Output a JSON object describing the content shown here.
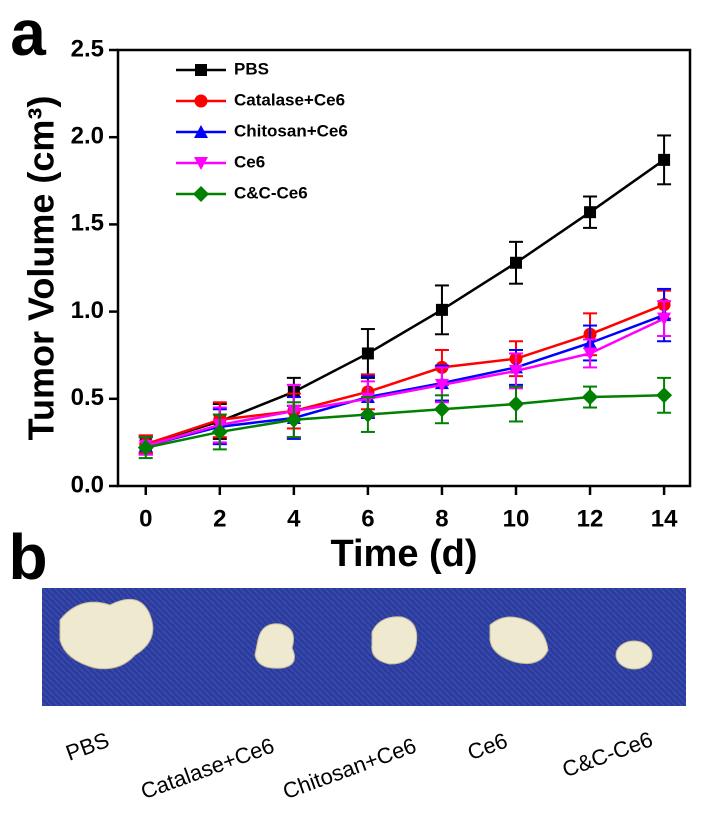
{
  "panel_labels": [
    "a",
    "b"
  ],
  "chart_data": {
    "type": "line",
    "xlabel": "Time (d)",
    "ylabel": "Tumor Volume (cm³)",
    "x": [
      0,
      2,
      4,
      6,
      8,
      10,
      12,
      14
    ],
    "xlim": [
      -0.75,
      14.7
    ],
    "xticks": [
      0,
      2,
      4,
      6,
      8,
      10,
      12,
      14
    ],
    "ylim": [
      0,
      2.5
    ],
    "yticks": [
      {
        "value": 0,
        "label": "0.0"
      },
      0.5,
      {
        "value": 1,
        "label": "1.0"
      },
      1.5,
      {
        "value": 2,
        "label": "2.0"
      },
      2.5
    ],
    "legend": "top-left",
    "series": [
      {
        "name": "PBS",
        "color": "#000000",
        "marker": "square",
        "values": [
          0.24,
          0.37,
          0.54,
          0.76,
          1.01,
          1.28,
          1.57,
          1.87
        ],
        "errors": [
          0.05,
          0.1,
          0.08,
          0.14,
          0.14,
          0.12,
          0.09,
          0.14
        ]
      },
      {
        "name": "Catalase+Ce6",
        "color": "#ff0000",
        "marker": "circle",
        "values": [
          0.24,
          0.38,
          0.43,
          0.54,
          0.68,
          0.73,
          0.87,
          1.04
        ],
        "errors": [
          0.05,
          0.1,
          0.1,
          0.1,
          0.1,
          0.1,
          0.12,
          0.08
        ]
      },
      {
        "name": "Chitosan+Ce6",
        "color": "#0000ff",
        "marker": "triangle-up",
        "values": [
          0.23,
          0.34,
          0.39,
          0.51,
          0.59,
          0.68,
          0.82,
          0.98
        ],
        "errors": [
          0.05,
          0.1,
          0.12,
          0.12,
          0.1,
          0.1,
          0.1,
          0.15
        ]
      },
      {
        "name": "Ce6",
        "color": "#ff00ff",
        "marker": "triangle-down",
        "values": [
          0.23,
          0.35,
          0.43,
          0.5,
          0.58,
          0.66,
          0.76,
          0.96
        ],
        "errors": [
          0.05,
          0.1,
          0.15,
          0.1,
          0.1,
          0.1,
          0.08,
          0.1
        ]
      },
      {
        "name": "C&C-Ce6",
        "color": "#008000",
        "marker": "diamond",
        "values": [
          0.22,
          0.31,
          0.38,
          0.41,
          0.44,
          0.47,
          0.51,
          0.52
        ],
        "errors": [
          0.06,
          0.1,
          0.1,
          0.1,
          0.08,
          0.1,
          0.06,
          0.1
        ]
      }
    ]
  },
  "photo_labels": [
    "PBS",
    "Catalase+Ce6",
    "Chitosan+Ce6",
    "Ce6",
    "C&C-Ce6"
  ]
}
